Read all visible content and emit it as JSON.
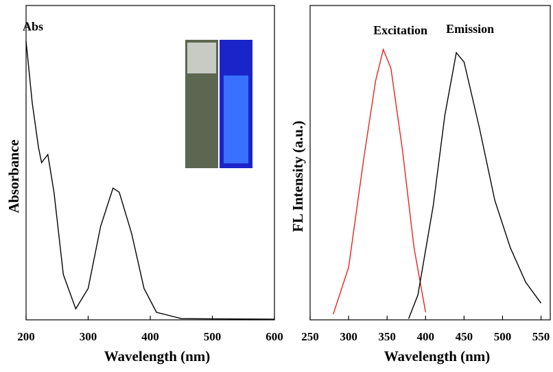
{
  "chart_data": [
    {
      "type": "line",
      "xlabel": "Wavelength (nm)",
      "ylabel": "Absorbance",
      "xlim": [
        200,
        600
      ],
      "xticks": [
        200,
        300,
        400,
        500,
        600
      ],
      "ylim": [
        0,
        1
      ],
      "series": [
        {
          "name": "Abs",
          "color": "#000000",
          "x": [
            200,
            210,
            220,
            225,
            235,
            245,
            260,
            280,
            300,
            320,
            340,
            350,
            370,
            390,
            410,
            450,
            500,
            600
          ],
          "values": [
            0.886,
            0.69,
            0.548,
            0.5,
            0.526,
            0.406,
            0.144,
            0.035,
            0.1,
            0.297,
            0.419,
            0.406,
            0.275,
            0.1,
            0.024,
            0.004,
            0.003,
            0.002
          ]
        }
      ]
    },
    {
      "type": "line",
      "xlabel": "Wavelength (nm)",
      "ylabel": "FL Intensity (a.u.)",
      "xlim": [
        250,
        562
      ],
      "xticks": [
        250,
        300,
        350,
        400,
        450,
        500,
        550
      ],
      "ylim": [
        0,
        1
      ],
      "series": [
        {
          "name": "Excitation",
          "color": "#e8221c",
          "x": [
            280,
            300,
            320,
            335,
            345,
            355,
            370,
            385,
            400
          ],
          "values": [
            0.018,
            0.167,
            0.518,
            0.76,
            0.86,
            0.8,
            0.54,
            0.23,
            0.024
          ]
        },
        {
          "name": "Emission",
          "color": "#000000",
          "x": [
            378,
            390,
            410,
            425,
            440,
            450,
            470,
            490,
            510,
            530,
            550
          ],
          "values": [
            0.004,
            0.079,
            0.364,
            0.65,
            0.85,
            0.82,
            0.61,
            0.38,
            0.23,
            0.12,
            0.053
          ]
        }
      ]
    }
  ]
}
